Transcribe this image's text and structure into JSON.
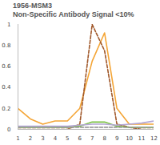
{
  "chart_data": {
    "type": "line",
    "title": "1956-MSM3",
    "subtitle": "Non-Specific Antibody Signal <10%",
    "x": [
      1,
      2,
      3,
      4,
      5,
      6,
      7,
      8,
      9,
      10,
      11,
      12
    ],
    "series": [
      {
        "color": "#f4a536",
        "line_style": "solid",
        "values": [
          0.2,
          0.1,
          0.05,
          0.08,
          0.08,
          0.2,
          0.65,
          0.92,
          0.2,
          0.05,
          0.05,
          0.05
        ]
      },
      {
        "color": "#a0582a",
        "line_style": "dashed",
        "values": [
          0.0,
          0.0,
          0.0,
          0.0,
          0.0,
          0.05,
          1.0,
          0.75,
          0.05,
          0.02,
          0.0,
          0.0
        ]
      },
      {
        "color": "#7ac143",
        "line_style": "solid",
        "values": [
          0.02,
          0.02,
          0.02,
          0.02,
          0.02,
          0.03,
          0.07,
          0.07,
          0.03,
          0.02,
          0.02,
          0.02
        ]
      },
      {
        "color": "#b4a7d6",
        "line_style": "solid",
        "values": [
          0.03,
          0.03,
          0.03,
          0.03,
          0.03,
          0.04,
          0.05,
          0.05,
          0.04,
          0.05,
          0.06,
          0.08
        ]
      },
      {
        "color": "#999999",
        "line_style": "dashed",
        "values": [
          0.02,
          0.02,
          0.02,
          0.02,
          0.02,
          0.02,
          0.02,
          0.02,
          0.02,
          0.02,
          0.02,
          0.02
        ]
      }
    ],
    "xlim": [
      1,
      12
    ],
    "xticks": [
      1,
      2,
      3,
      4,
      5,
      6,
      7,
      8,
      9,
      10,
      11,
      12
    ],
    "ylim": [
      0,
      1
    ],
    "yticks": [
      0,
      0.2,
      0.4,
      0.6,
      0.8,
      1
    ],
    "grid": false
  }
}
